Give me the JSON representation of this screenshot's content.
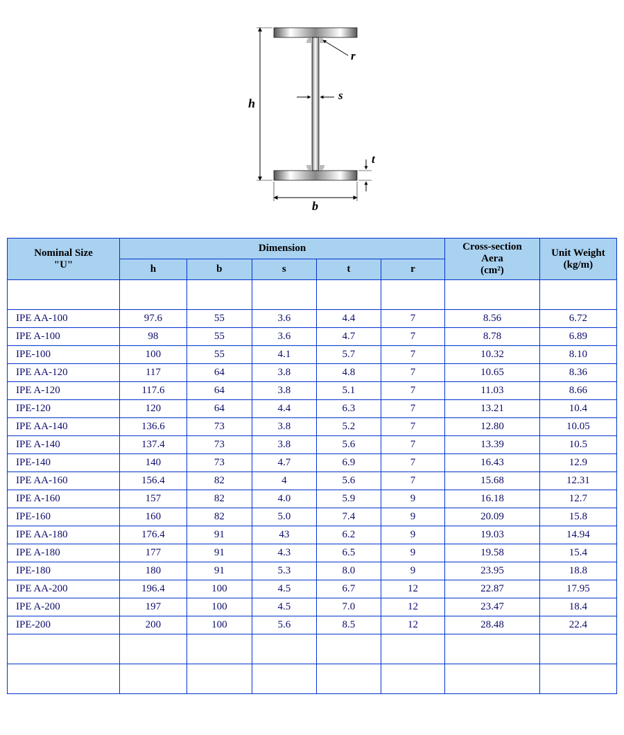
{
  "diagram": {
    "labels": {
      "h": "h",
      "b": "b",
      "s": "s",
      "t": "t",
      "r": "r"
    },
    "label_font_size": 18,
    "label_color": "#000000",
    "flange_gradient": [
      "#555555",
      "#ffffff",
      "#555555"
    ],
    "outline_color": "#000000"
  },
  "table": {
    "header_bg": "#a9d1f0",
    "border_color": "#0033cc",
    "text_color": "#0b0b6b",
    "font_size": 15,
    "headers": {
      "nominal": "Nominal Size",
      "nominal_sub": "\"U\"",
      "dimension": "Dimension",
      "h": "h",
      "b": "b",
      "s": "s",
      "t": "t",
      "r": "r",
      "area_top": "Cross-section Aera",
      "area_unit": "(cm²)",
      "weight_top": "Unit Weight",
      "weight_unit": "(kg/m)"
    },
    "groups": [
      [
        {
          "name": "IPE AA-100",
          "h": "97.6",
          "b": "55",
          "s": "3.6",
          "t": "4.4",
          "r": "7",
          "area": "8.56",
          "wt": "6.72"
        },
        {
          "name": "IPE A-100",
          "h": "98",
          "b": "55",
          "s": "3.6",
          "t": "4.7",
          "r": "7",
          "area": "8.78",
          "wt": "6.89"
        },
        {
          "name": "IPE-100",
          "h": "100",
          "b": "55",
          "s": "4.1",
          "t": "5.7",
          "r": "7",
          "area": "10.32",
          "wt": "8.10"
        }
      ],
      [
        {
          "name": "IPE AA-120",
          "h": "117",
          "b": "64",
          "s": "3.8",
          "t": "4.8",
          "r": "7",
          "area": "10.65",
          "wt": "8.36"
        },
        {
          "name": "IPE A-120",
          "h": "117.6",
          "b": "64",
          "s": "3.8",
          "t": "5.1",
          "r": "7",
          "area": "11.03",
          "wt": "8.66"
        },
        {
          "name": "IPE-120",
          "h": "120",
          "b": "64",
          "s": "4.4",
          "t": "6.3",
          "r": "7",
          "area": "13.21",
          "wt": "10.4"
        }
      ],
      [
        {
          "name": "IPE AA-140",
          "h": "136.6",
          "b": "73",
          "s": "3.8",
          "t": "5.2",
          "r": "7",
          "area": "12.80",
          "wt": "10.05"
        },
        {
          "name": "IPE A-140",
          "h": "137.4",
          "b": "73",
          "s": "3.8",
          "t": "5.6",
          "r": "7",
          "area": "13.39",
          "wt": "10.5"
        },
        {
          "name": "IPE-140",
          "h": "140",
          "b": "73",
          "s": "4.7",
          "t": "6.9",
          "r": "7",
          "area": "16.43",
          "wt": "12.9"
        }
      ],
      [
        {
          "name": "IPE AA-160",
          "h": "156.4",
          "b": "82",
          "s": "4",
          "t": "5.6",
          "r": "7",
          "area": "15.68",
          "wt": "12.31"
        },
        {
          "name": "IPE A-160",
          "h": "157",
          "b": "82",
          "s": "4.0",
          "t": "5.9",
          "r": "9",
          "area": "16.18",
          "wt": "12.7"
        },
        {
          "name": "IPE-160",
          "h": "160",
          "b": "82",
          "s": "5.0",
          "t": "7.4",
          "r": "9",
          "area": "20.09",
          "wt": "15.8"
        }
      ],
      [
        {
          "name": "IPE AA-180",
          "h": "176.4",
          "b": "91",
          "s": "43",
          "t": "6.2",
          "r": "9",
          "area": "19.03",
          "wt": "14.94"
        },
        {
          "name": "IPE A-180",
          "h": "177",
          "b": "91",
          "s": "4.3",
          "t": "6.5",
          "r": "9",
          "area": "19.58",
          "wt": "15.4"
        },
        {
          "name": "IPE-180",
          "h": "180",
          "b": "91",
          "s": "5.3",
          "t": "8.0",
          "r": "9",
          "area": "23.95",
          "wt": "18.8"
        }
      ],
      [
        {
          "name": "IPE AA-200",
          "h": "196.4",
          "b": "100",
          "s": "4.5",
          "t": "6.7",
          "r": "12",
          "area": "22.87",
          "wt": "17.95"
        },
        {
          "name": "IPE A-200",
          "h": "197",
          "b": "100",
          "s": "4.5",
          "t": "7.0",
          "r": "12",
          "area": "23.47",
          "wt": "18.4"
        },
        {
          "name": "IPE-200",
          "h": "200",
          "b": "100",
          "s": "5.6",
          "t": "8.5",
          "r": "12",
          "area": "28.48",
          "wt": "22.4"
        }
      ]
    ]
  }
}
